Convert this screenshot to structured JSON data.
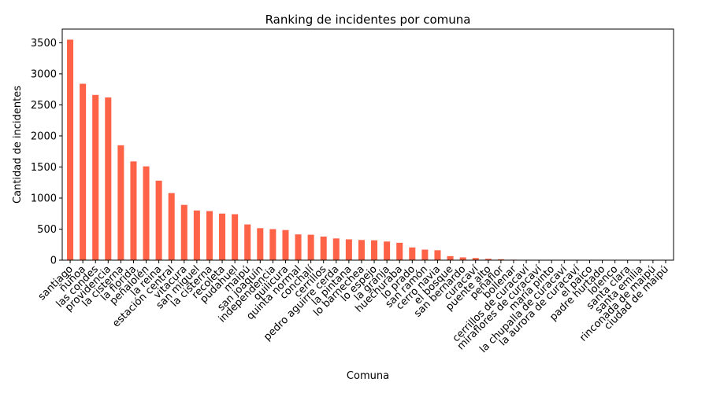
{
  "chart_data": {
    "type": "bar",
    "title": "Ranking de incidentes por comuna",
    "xlabel": "Comuna",
    "ylabel": "Cantidad de incidentes",
    "ylim": [
      0,
      3720
    ],
    "yticks": [
      0,
      500,
      1000,
      1500,
      2000,
      2500,
      3000,
      3500
    ],
    "grid": false,
    "legend": "none",
    "bar_color": "#ff6347",
    "categories": [
      "santiago",
      "ñuñoa",
      "las condes",
      "providencia",
      "la cisterna",
      "la florida",
      "peñalolén",
      "la reina",
      "estación central",
      "vitacura",
      "san miguel",
      "la cisterna",
      "recoleta",
      "pudahuel",
      "maipú",
      "san joaquín",
      "independencia",
      "quilicura",
      "quinta normal",
      "conchalí",
      "cerrillos",
      "pedro aguirre cerda",
      "la pintana",
      "lo barnechea",
      "lo espejo",
      "la granja",
      "huechuraba",
      "lo prado",
      "san ramón",
      "cerro navia",
      "el bosque",
      "san bernardo",
      "curacaví",
      "puente alto",
      "peñaflor",
      "bollenar",
      "cerrillos de curacaví",
      "miraflores de curacaví",
      "maría pinto",
      "la chupalla de curacaví",
      "la aurora de curacaví",
      "el paico",
      "padre hurtado",
      "lolenco",
      "santa clara",
      "santa emilia",
      "rinconada de maipú",
      "ciudad de maipú"
    ],
    "values": [
      3550,
      2840,
      2660,
      2620,
      1850,
      1590,
      1510,
      1280,
      1080,
      890,
      800,
      790,
      750,
      740,
      575,
      515,
      500,
      485,
      415,
      410,
      380,
      350,
      335,
      325,
      320,
      300,
      280,
      205,
      170,
      160,
      65,
      45,
      35,
      22,
      15,
      8,
      6,
      5,
      4,
      3,
      3,
      3,
      2,
      2,
      2,
      2,
      2,
      2
    ]
  }
}
